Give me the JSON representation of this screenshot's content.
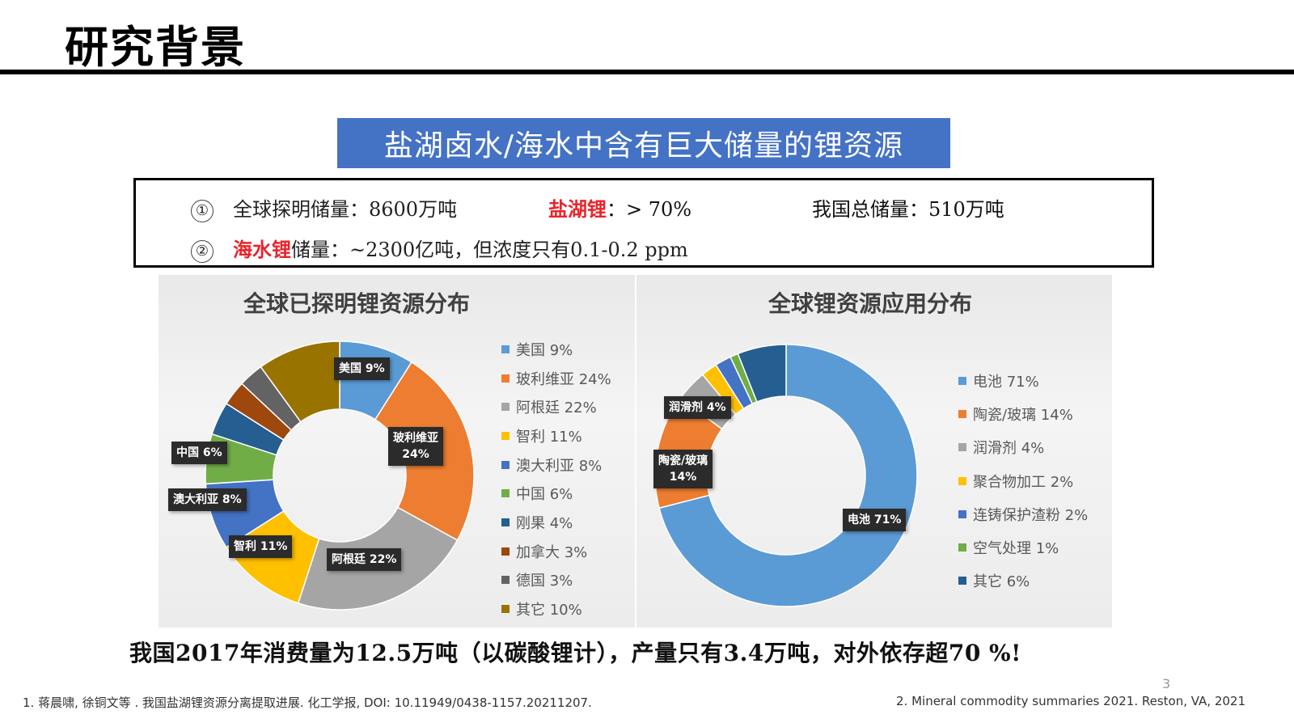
{
  "header": {
    "title": "研究背景"
  },
  "banner": {
    "text": "盐湖卤水/海水中含有巨大储量的锂资源"
  },
  "facts": {
    "line1": {
      "marker": "①",
      "global_label": "全球探明储量：",
      "global_value": "8600万吨",
      "salt_lake_label": "盐湖锂",
      "salt_lake_value": "：> 70%",
      "china_label": "我国总储量：",
      "china_value": "510万吨"
    },
    "line2": {
      "marker": "②",
      "seawater_label": "海水锂",
      "seawater_text": "储量：~2300亿吨，但浓度只有0.1-0.2 ppm"
    }
  },
  "chart_data": [
    {
      "type": "pie",
      "subtype": "donut",
      "title": "全球已探明锂资源分布",
      "categories": [
        "美国",
        "玻利维亚",
        "阿根廷",
        "智利",
        "澳大利亚",
        "中国",
        "刚果",
        "加拿大",
        "德国",
        "其它"
      ],
      "values": [
        9,
        24,
        22,
        11,
        8,
        6,
        4,
        3,
        3,
        10
      ],
      "unit": "%",
      "colors": [
        "#5b9bd5",
        "#ed7d31",
        "#a5a5a5",
        "#ffc000",
        "#4472c4",
        "#70ad47",
        "#255e91",
        "#9e480e",
        "#636363",
        "#997300"
      ],
      "legend_position": "right",
      "data_labels": [
        "美国 9%",
        "玻利维亚 24%",
        "阿根廷 22%",
        "智利 11%",
        "澳大利亚 8%",
        "中国 6%"
      ]
    },
    {
      "type": "pie",
      "subtype": "donut",
      "title": "全球锂资源应用分布",
      "categories": [
        "电池",
        "陶瓷/玻璃",
        "润滑剂",
        "聚合物加工",
        "连铸保护渣粉",
        "空气处理",
        "其它"
      ],
      "values": [
        71,
        14,
        4,
        2,
        2,
        1,
        6
      ],
      "unit": "%",
      "colors": [
        "#5b9bd5",
        "#ed7d31",
        "#a5a5a5",
        "#ffc000",
        "#4472c4",
        "#70ad47",
        "#255e91"
      ],
      "legend_position": "right",
      "data_labels": [
        "电池 71%",
        "陶瓷/玻璃 14%",
        "润滑剂 4%"
      ]
    }
  ],
  "left_chart": {
    "title": "全球已探明锂资源分布",
    "labels": {
      "us": "美国 9%",
      "bolivia_1": "玻利维亚",
      "bolivia_2": "24%",
      "argentina": "阿根廷 22%",
      "chile": "智利 11%",
      "australia": "澳大利亚 8%",
      "china": "中国 6%"
    },
    "legend": [
      {
        "label": "美国 9%",
        "color": "#5b9bd5"
      },
      {
        "label": "玻利维亚 24%",
        "color": "#ed7d31"
      },
      {
        "label": "阿根廷 22%",
        "color": "#a5a5a5"
      },
      {
        "label": "智利 11%",
        "color": "#ffc000"
      },
      {
        "label": "澳大利亚 8%",
        "color": "#4472c4"
      },
      {
        "label": "中国 6%",
        "color": "#70ad47"
      },
      {
        "label": "刚果 4%",
        "color": "#255e91"
      },
      {
        "label": "加拿大 3%",
        "color": "#9e480e"
      },
      {
        "label": "德国 3%",
        "color": "#636363"
      },
      {
        "label": "其它 10%",
        "color": "#997300"
      }
    ]
  },
  "right_chart": {
    "title": "全球锂资源应用分布",
    "labels": {
      "battery": "电池 71%",
      "ceramic_1": "陶瓷/玻璃",
      "ceramic_2": "14%",
      "lubricant": "润滑剂 4%"
    },
    "legend": [
      {
        "label": "电池 71%",
        "color": "#5b9bd5"
      },
      {
        "label": "陶瓷/玻璃 14%",
        "color": "#ed7d31"
      },
      {
        "label": "润滑剂 4%",
        "color": "#a5a5a5"
      },
      {
        "label": "聚合物加工 2%",
        "color": "#ffc000"
      },
      {
        "label": "连铸保护渣粉 2%",
        "color": "#4472c4"
      },
      {
        "label": "空气处理 1%",
        "color": "#70ad47"
      },
      {
        "label": "其它 6%",
        "color": "#255e91"
      }
    ]
  },
  "summary": {
    "text": "我国2017年消费量为12.5万吨（以碳酸锂计），产量只有3.4万吨，对外依存超70 %!"
  },
  "footer": {
    "page_number": "3",
    "ref1": "1. 蒋晨啸, 徐铜文等 . 我国盐湖锂资源分离提取进展. 化工学报, DOI: 10.11949/0438-1157.20211207.",
    "ref2": "2. Mineral commodity summaries 2021. Reston, VA, 2021"
  }
}
